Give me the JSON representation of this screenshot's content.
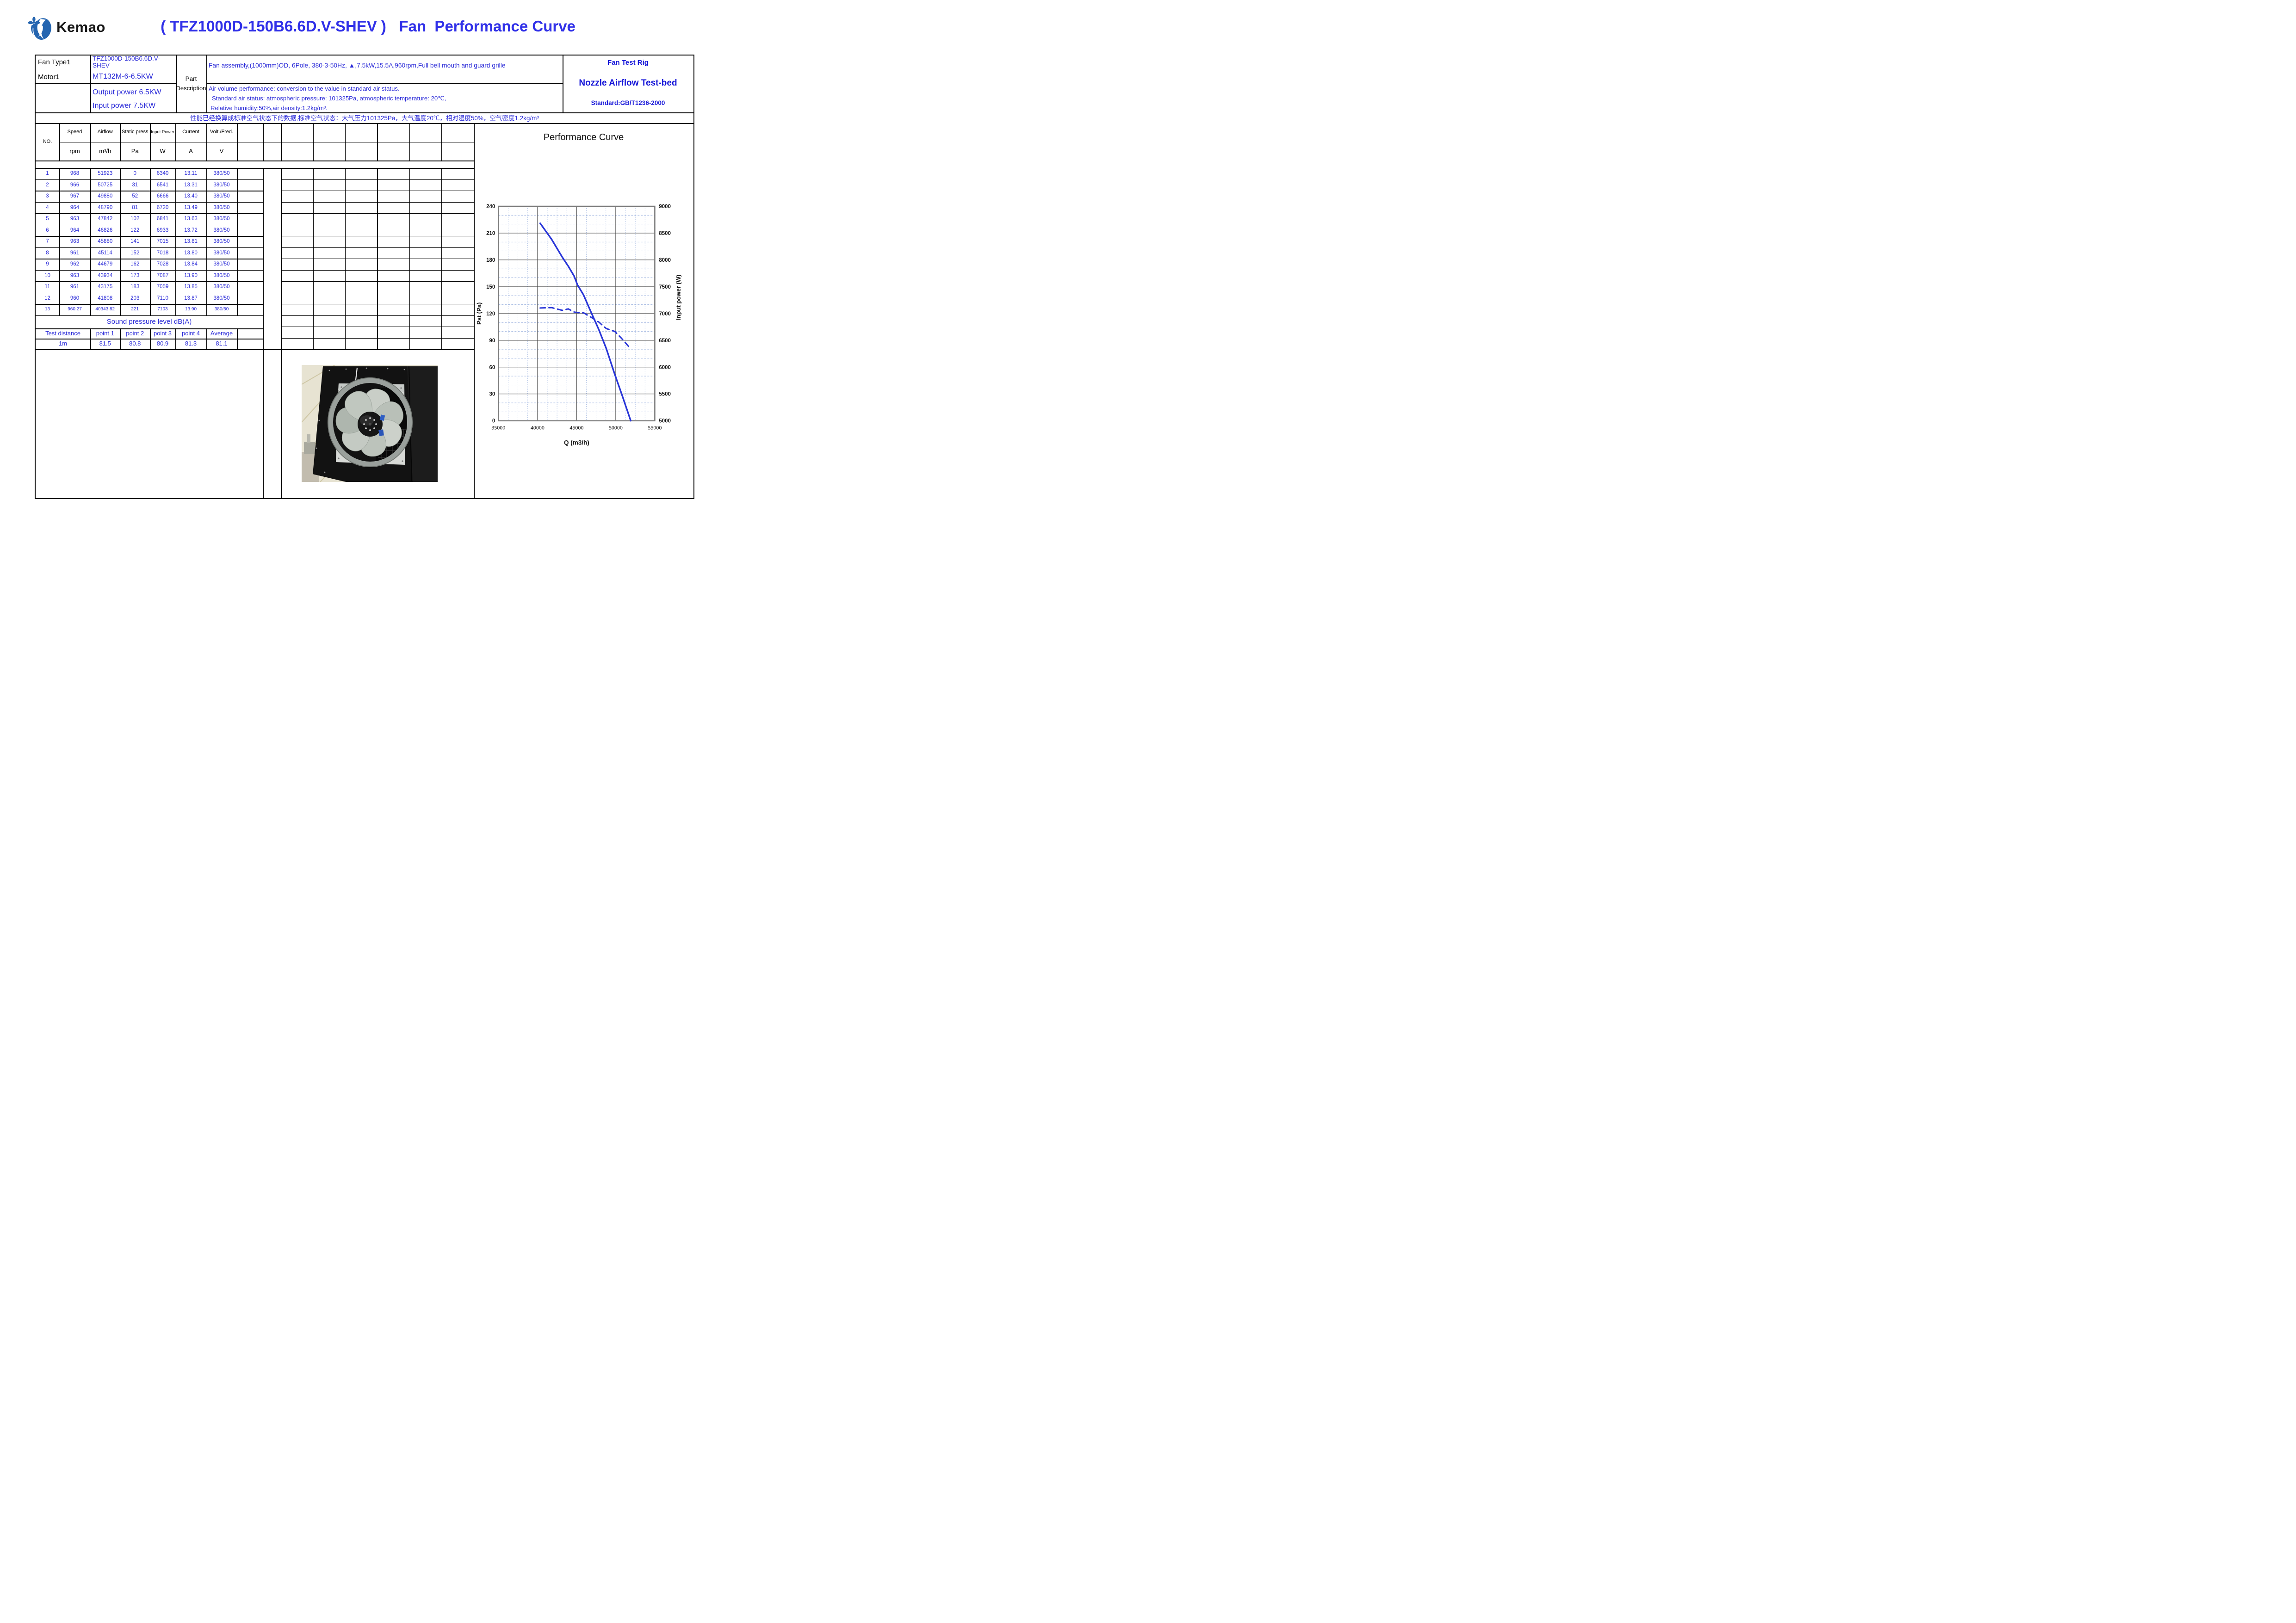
{
  "header": {
    "logo_text": "Kemao",
    "title": "( TFZ1000D-150B6.6D.V-SHEV )   Fan  Performance Curve"
  },
  "info": {
    "fan_type_label": "Fan Type1",
    "fan_type_value": "TFZ1000D-150B6.6D.V-SHEV",
    "motor_label": "Motor1",
    "motor_value": "MT132M-6-6.5KW",
    "output_power": "Output power 6.5KW",
    "input_power": "Input power 7.5KW",
    "part_label_line1": "Part",
    "part_label_line2": "Description",
    "desc_line1": "Fan assembly,(1000mm)OD, 6Pole, 380-3-50Hz, ▲,7.5kW,15.5A,960rpm,Full bell mouth and guard grille",
    "desc_line2": "Air volume performance: conversion to the value in standard air status.",
    "desc_line3": "Standard air status: atmospheric pressure: 101325Pa, atmospheric temperature: 20℃,",
    "desc_line4": "Relative humidity:50%,air density:1.2kg/m³.",
    "test_rig_title": "Fan Test Rig",
    "test_bed_name": "Nozzle Airflow Test-bed",
    "test_standard": "Standard:GB/T1236-2000",
    "cn_note": "性能已经换算成标准空气状态下的数据,标准空气状态：大气压力101325Pa，大气温度20℃，相对湿度50%，空气密度1.2kg/m³"
  },
  "table": {
    "col_headers": [
      "NO.",
      "Speed",
      "Airflow",
      "Static press",
      "Input Power",
      "Current",
      "Volt./Fred."
    ],
    "col_units": [
      "",
      "rpm",
      "m³/h",
      "Pa",
      "W",
      "A",
      "V"
    ],
    "rows": [
      [
        "1",
        "968",
        "51923",
        "0",
        "6340",
        "13.11",
        "380/50"
      ],
      [
        "2",
        "966",
        "50725",
        "31",
        "6541",
        "13.31",
        "380/50"
      ],
      [
        "3",
        "967",
        "49880",
        "52",
        "6666",
        "13.40",
        "380/50"
      ],
      [
        "4",
        "964",
        "48790",
        "81",
        "6720",
        "13.49",
        "380/50"
      ],
      [
        "5",
        "963",
        "47842",
        "102",
        "6841",
        "13.63",
        "380/50"
      ],
      [
        "6",
        "964",
        "46826",
        "122",
        "6933",
        "13.72",
        "380/50"
      ],
      [
        "7",
        "963",
        "45880",
        "141",
        "7015",
        "13.81",
        "380/50"
      ],
      [
        "8",
        "961",
        "45114",
        "152",
        "7018",
        "13.80",
        "380/50"
      ],
      [
        "9",
        "962",
        "44679",
        "162",
        "7028",
        "13.84",
        "380/50"
      ],
      [
        "10",
        "963",
        "43934",
        "173",
        "7087",
        "13.90",
        "380/50"
      ],
      [
        "11",
        "961",
        "43175",
        "183",
        "7059",
        "13.85",
        "380/50"
      ],
      [
        "12",
        "960",
        "41808",
        "203",
        "7110",
        "13.87",
        "380/50"
      ],
      [
        "13",
        "960.27",
        "40343.82",
        "221",
        "7103",
        "13.90",
        "380/50"
      ]
    ]
  },
  "sound": {
    "title": "Sound pressure level dB(A)",
    "headers": [
      "Test distance",
      "point 1",
      "point 2",
      "point 3",
      "point 4",
      "Average"
    ],
    "values": [
      "1m",
      "81.5",
      "80.8",
      "80.9",
      "81.3",
      "81.1"
    ]
  },
  "chart": {
    "title": "Performance Curve"
  },
  "chart_data": {
    "type": "line",
    "title": "Performance Curve",
    "xlabel": "Q (m3/h)",
    "ylabel_left": "Pst (Pa)",
    "ylabel_right": "Input power (W)",
    "x_range": [
      35000,
      55000
    ],
    "x_ticks": [
      35000,
      40000,
      45000,
      50000,
      55000
    ],
    "x_minor_step": 1250,
    "y_left_range": [
      0,
      240
    ],
    "y_left_ticks": [
      0,
      30,
      60,
      90,
      120,
      150,
      180,
      210,
      240
    ],
    "y_left_minor_step": 10,
    "y_right_range": [
      5000,
      9000
    ],
    "y_right_ticks": [
      5000,
      5500,
      6000,
      6500,
      7000,
      7500,
      8000,
      8500,
      9000
    ],
    "grid": true,
    "legend": "none",
    "series": [
      {
        "name": "Static pressure Pst (Pa)",
        "axis": "left",
        "line": "solid",
        "color": "#2936d8",
        "x": [
          40343.82,
          41808,
          43175,
          43934,
          44679,
          45114,
          45880,
          46826,
          47842,
          48790,
          49880,
          50725,
          51923
        ],
        "y": [
          221,
          203,
          183,
          173,
          162,
          152,
          141,
          122,
          102,
          81,
          52,
          31,
          0
        ]
      },
      {
        "name": "Input power (W)",
        "axis": "right",
        "line": "dashed",
        "color": "#2936d8",
        "x": [
          40343.82,
          41808,
          43175,
          43934,
          44679,
          45114,
          45880,
          46826,
          47842,
          48790,
          49880,
          50725,
          51923
        ],
        "y": [
          7103,
          7110,
          7059,
          7087,
          7028,
          7018,
          7015,
          6933,
          6841,
          6720,
          6666,
          6541,
          6340
        ]
      }
    ]
  },
  "colors": {
    "value_blue": "#2b2bd8",
    "title_blue": "#3030e8",
    "logo_blue": "#2565b0",
    "curve_blue": "#2936d8",
    "grid_minor": "#8fa8da",
    "border": "#000000"
  }
}
